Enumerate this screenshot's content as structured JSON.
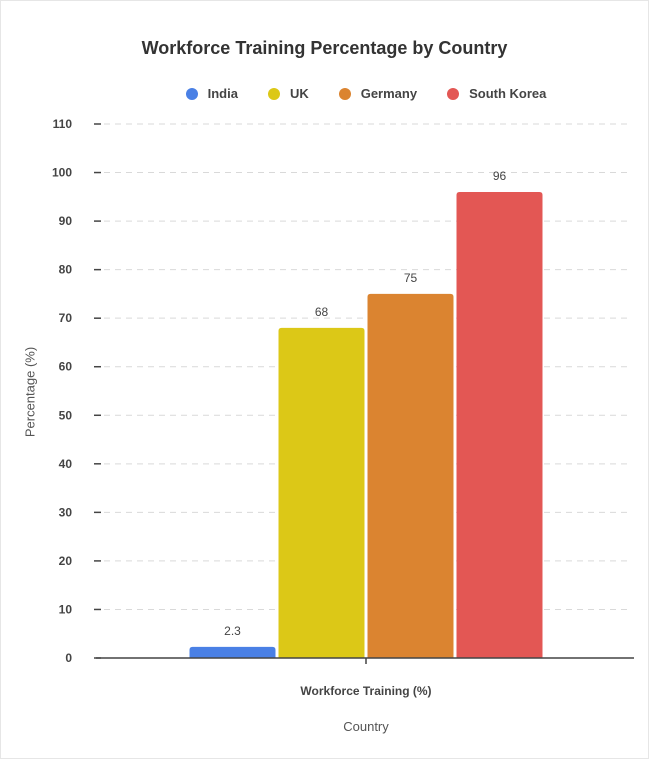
{
  "chart_data": {
    "type": "bar",
    "title": "Workforce Training Percentage by Country",
    "xlabel": "Country",
    "ylabel": "Percentage (%)",
    "categories": [
      "Workforce Training (%)"
    ],
    "series": [
      {
        "name": "India",
        "values": [
          2.3
        ],
        "color": "#4a80e5"
      },
      {
        "name": "UK",
        "values": [
          68
        ],
        "color": "#dcc817"
      },
      {
        "name": "Germany",
        "values": [
          75
        ],
        "color": "#db8430"
      },
      {
        "name": "South Korea",
        "values": [
          96
        ],
        "color": "#e35754"
      }
    ],
    "ylim": [
      0,
      110
    ],
    "yticks": [
      0,
      10,
      20,
      30,
      40,
      50,
      60,
      70,
      80,
      90,
      100,
      110
    ],
    "grid": true,
    "legend_position": "top"
  }
}
